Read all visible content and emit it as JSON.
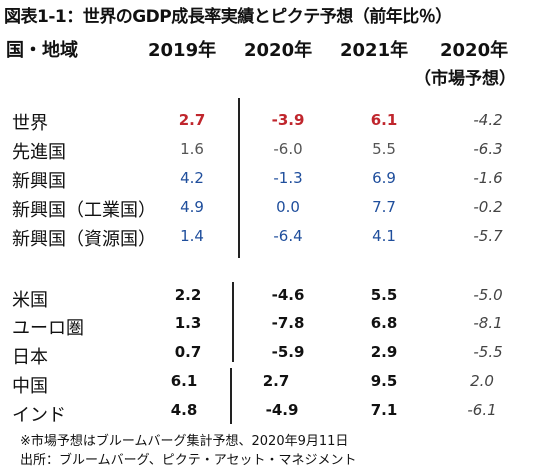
{
  "title": "図表1-1：世界のGDP成長率実績とピクテ予想（前年比％）",
  "header": {
    "region_label": "国・地域",
    "columns": [
      "2019年",
      "2020年",
      "2021年",
      "2020年"
    ],
    "column4_sub": "（市場予想）"
  },
  "group1": [
    {
      "label": "世界",
      "values": [
        "2.7",
        "-3.9",
        "6.1",
        "-4.2"
      ],
      "color": "red"
    },
    {
      "label": "先進国",
      "values": [
        "1.6",
        "-6.0",
        "5.5",
        "-6.3"
      ],
      "color": "gray"
    },
    {
      "label": "新興国",
      "values": [
        "4.2",
        "-1.3",
        "6.9",
        "-1.6"
      ],
      "color": "blue"
    },
    {
      "label": "新興国（工業国）",
      "values": [
        "4.9",
        "0.0",
        "7.7",
        "-0.2"
      ],
      "color": "blue"
    },
    {
      "label": "新興国（資源国）",
      "values": [
        "1.4",
        "-6.4",
        "4.1",
        "-5.7"
      ],
      "color": "blue"
    }
  ],
  "group2": [
    {
      "label": "米国",
      "values": [
        "2.2",
        "-4.6",
        "5.5",
        "-5.0"
      ]
    },
    {
      "label": "ユーロ圏",
      "values": [
        "1.3",
        "-7.8",
        "6.8",
        "-8.1"
      ]
    },
    {
      "label": "日本",
      "values": [
        "0.7",
        "-5.9",
        "2.9",
        "-5.5"
      ]
    },
    {
      "label": "中国",
      "values": [
        "6.1",
        "2.7",
        "9.5",
        "2.0"
      ]
    },
    {
      "label": "インド",
      "values": [
        "4.8",
        "-4.9",
        "7.1",
        "-6.1"
      ]
    }
  ],
  "notes": {
    "note1": "※市場予想はブルームバーグ集計予想、2020年9月11日",
    "source": "出所：ブルームバーグ、ピクテ・アセット・マネジメント"
  },
  "colors": {
    "red": "#c0262d",
    "gray": "#555555",
    "blue": "#1f4e9c"
  }
}
